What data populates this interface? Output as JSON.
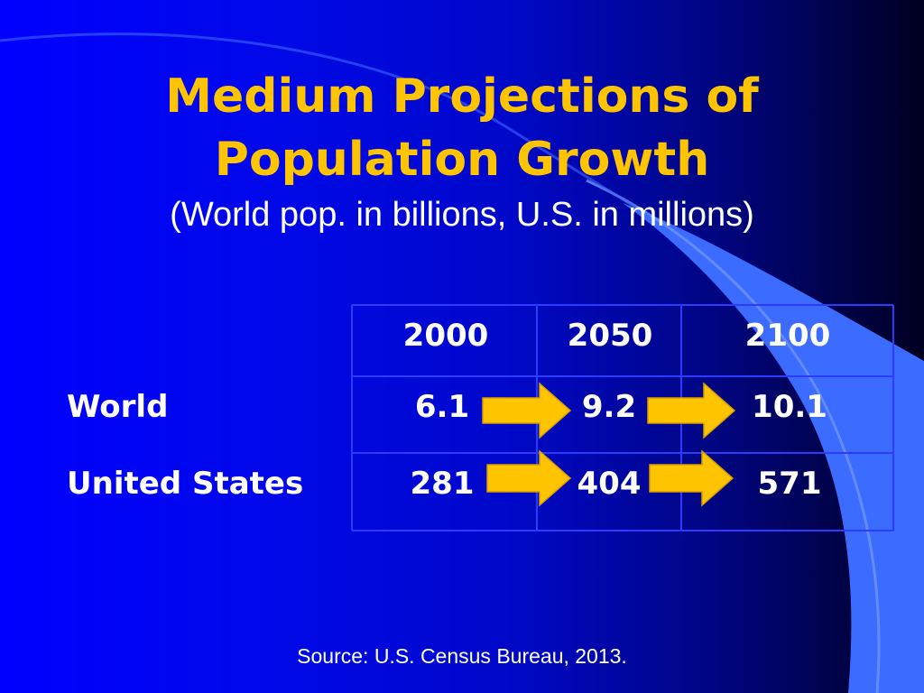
{
  "slide": {
    "title_line_1": "Medium Projections of",
    "title_line_2": "Population Growth",
    "subtitle": "(World pop. in billions, U.S. in millions)",
    "source": "Source:  U.S. Census Bureau, 2013."
  },
  "colors": {
    "title": "#ffc400",
    "text": "#ffffff",
    "arrow": "#ffc400",
    "grid": "#2b3cff"
  },
  "chart_data": {
    "type": "table",
    "columns": [
      "2000",
      "2050",
      "2100"
    ],
    "rows": [
      {
        "label": "World",
        "values": [
          "6.1",
          "9.2",
          "10.1"
        ]
      },
      {
        "label": "United States",
        "values": [
          "281",
          "404",
          "571"
        ]
      }
    ],
    "annotations": [
      "arrow-right between each pair of consecutive values"
    ]
  }
}
